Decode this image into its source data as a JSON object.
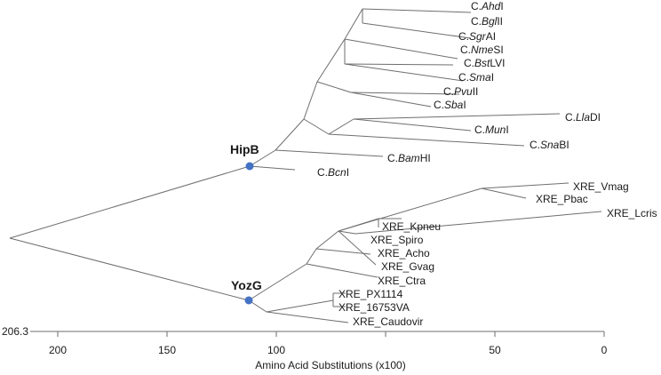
{
  "axis": {
    "title": "Amino Acid Substitutions (x100)",
    "max_value_label": "206.3",
    "ticks": [
      "200",
      "150",
      "100",
      "50",
      "0"
    ]
  },
  "nodes": {
    "hipb": "HipB",
    "yozg": "YozG"
  },
  "leaves": [
    {
      "id": "ahdi",
      "parts": [
        {
          "t": "C."
        },
        {
          "t": "Ahd",
          "i": true
        },
        {
          "t": "I"
        }
      ]
    },
    {
      "id": "bglii",
      "parts": [
        {
          "t": "C."
        },
        {
          "t": "Bgl",
          "i": true
        },
        {
          "t": "II"
        }
      ]
    },
    {
      "id": "sgrai",
      "parts": [
        {
          "t": "C."
        },
        {
          "t": "Sgr",
          "i": true
        },
        {
          "t": "AI"
        }
      ]
    },
    {
      "id": "nmesi",
      "parts": [
        {
          "t": "C."
        },
        {
          "t": "Nme",
          "i": true
        },
        {
          "t": "SI"
        }
      ]
    },
    {
      "id": "bstlvi",
      "parts": [
        {
          "t": "C."
        },
        {
          "t": "Bst",
          "i": true
        },
        {
          "t": "LVI"
        }
      ]
    },
    {
      "id": "smai",
      "parts": [
        {
          "t": "C."
        },
        {
          "t": "Sma",
          "i": true
        },
        {
          "t": "I"
        }
      ]
    },
    {
      "id": "pvuii",
      "parts": [
        {
          "t": "C."
        },
        {
          "t": "Pvu",
          "i": true
        },
        {
          "t": "II"
        }
      ]
    },
    {
      "id": "sbai",
      "parts": [
        {
          "t": "C."
        },
        {
          "t": "Sba",
          "i": true
        },
        {
          "t": "I"
        }
      ]
    },
    {
      "id": "lladi",
      "parts": [
        {
          "t": "C."
        },
        {
          "t": "Lla",
          "i": true
        },
        {
          "t": "DI"
        }
      ]
    },
    {
      "id": "muni",
      "parts": [
        {
          "t": "C."
        },
        {
          "t": "Mun",
          "i": true
        },
        {
          "t": "I"
        }
      ]
    },
    {
      "id": "snabi",
      "parts": [
        {
          "t": "C."
        },
        {
          "t": "Sna",
          "i": true
        },
        {
          "t": "BI"
        }
      ]
    },
    {
      "id": "bamhi",
      "parts": [
        {
          "t": "C."
        },
        {
          "t": "Bam",
          "i": true
        },
        {
          "t": "HI"
        }
      ]
    },
    {
      "id": "bcni",
      "parts": [
        {
          "t": "C."
        },
        {
          "t": "Bcn",
          "i": true
        },
        {
          "t": "I"
        }
      ]
    },
    {
      "id": "vmag",
      "parts": [
        {
          "t": "XRE_Vmag"
        }
      ]
    },
    {
      "id": "pbac",
      "parts": [
        {
          "t": "XRE_Pbac"
        }
      ]
    },
    {
      "id": "lcris",
      "parts": [
        {
          "t": "XRE_Lcris"
        }
      ]
    },
    {
      "id": "kpneu",
      "parts": [
        {
          "t": "XRE_Kpneu"
        }
      ]
    },
    {
      "id": "spiro",
      "parts": [
        {
          "t": "XRE_Spiro"
        }
      ]
    },
    {
      "id": "acho",
      "parts": [
        {
          "t": "XRE_Acho"
        }
      ]
    },
    {
      "id": "gvag",
      "parts": [
        {
          "t": "XRE_Gvag"
        }
      ]
    },
    {
      "id": "ctra",
      "parts": [
        {
          "t": "XRE_Ctra"
        }
      ]
    },
    {
      "id": "px1114",
      "parts": [
        {
          "t": "XRE_PX1114"
        }
      ]
    },
    {
      "id": "v16753",
      "parts": [
        {
          "t": "XRE_16753VA"
        }
      ]
    },
    {
      "id": "caudo",
      "parts": [
        {
          "t": "XRE_Caudovir"
        }
      ]
    }
  ]
}
